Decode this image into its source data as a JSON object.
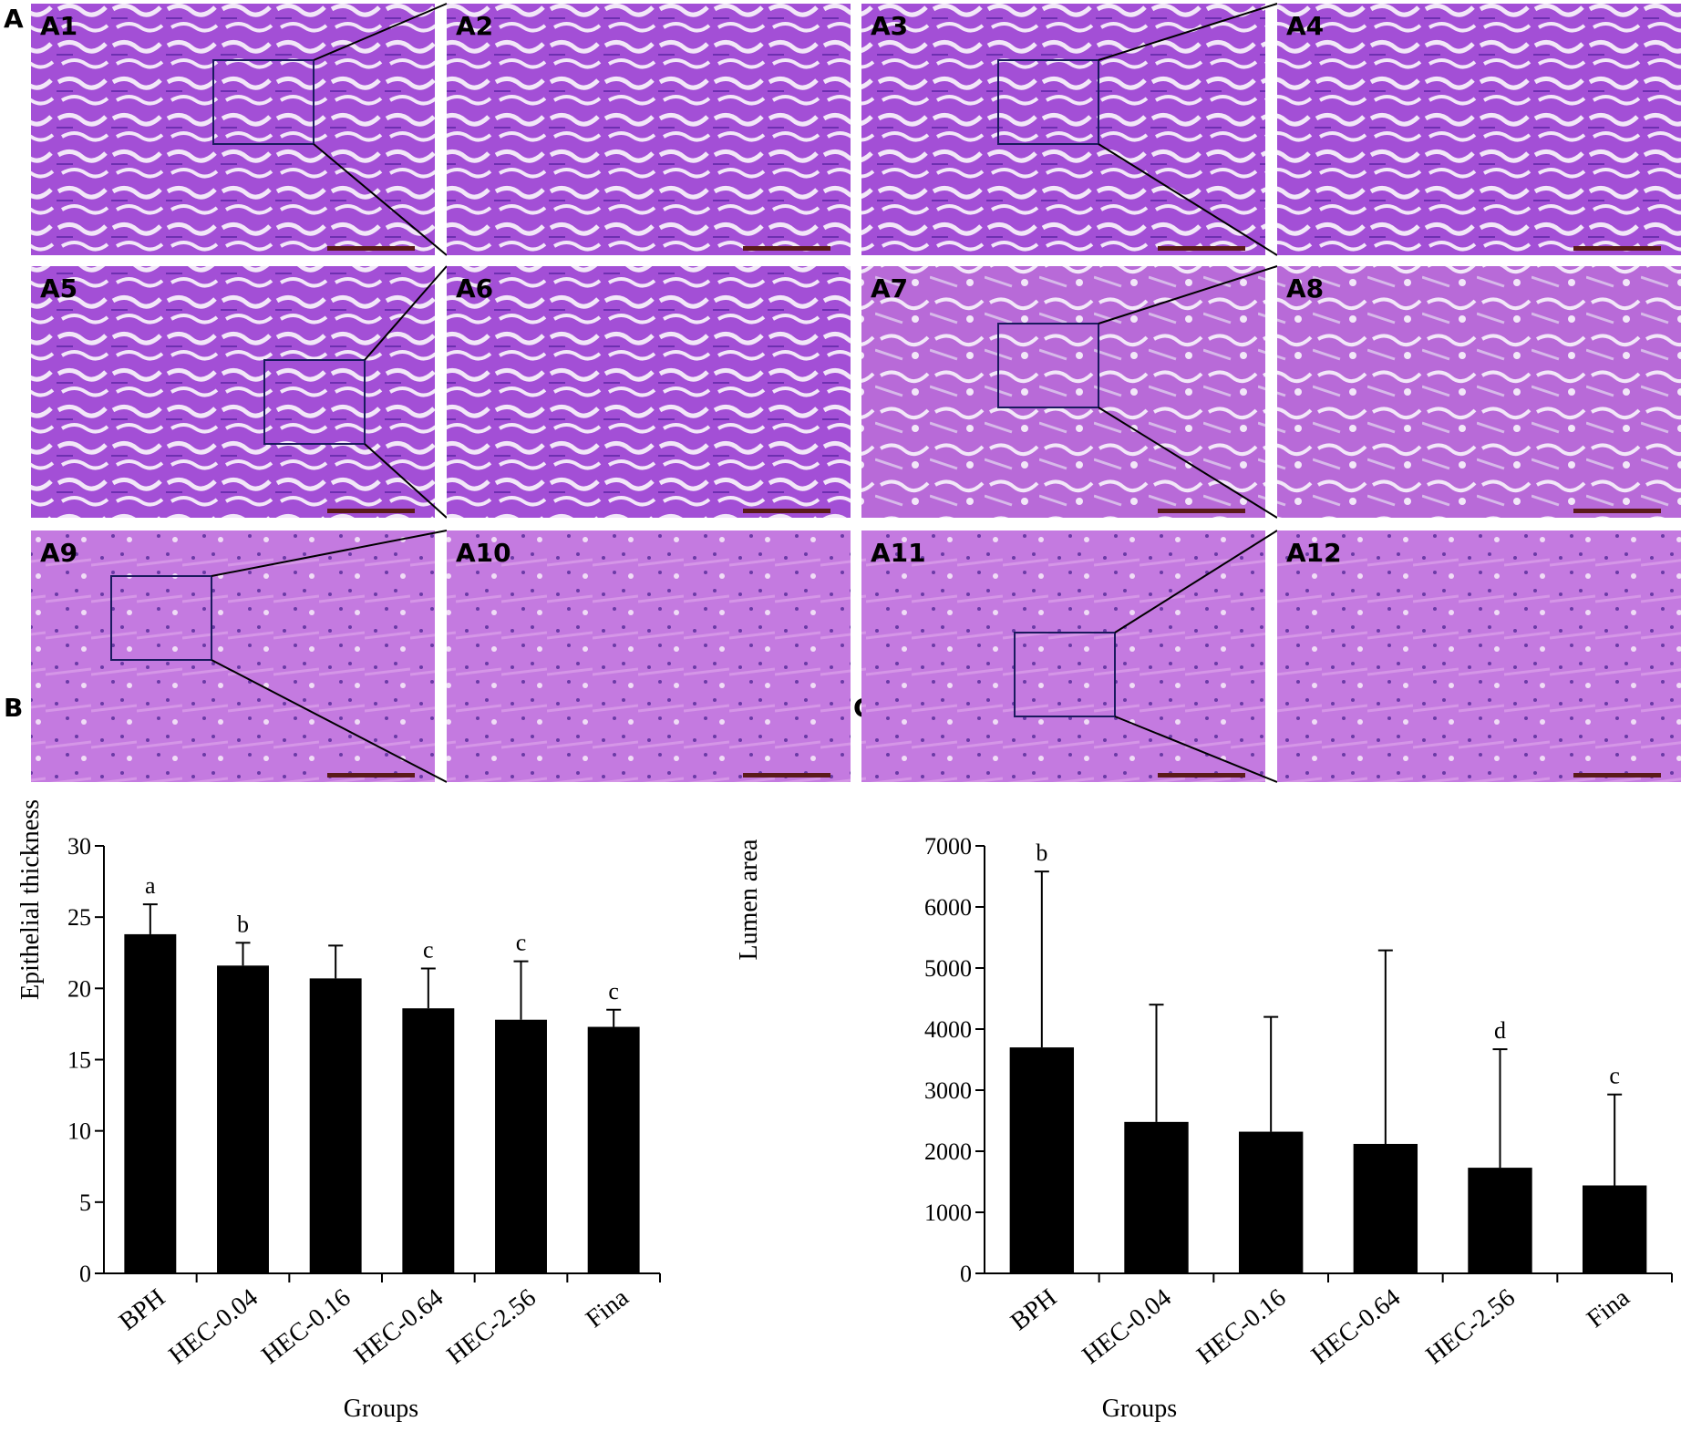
{
  "figure": {
    "panel_a_letter": "A",
    "panel_b_letter": "B",
    "panel_c_letter": "C",
    "micrographs": [
      {
        "label": "A1",
        "kind": "overview",
        "tone": "dense-pink-purple",
        "boxed": true
      },
      {
        "label": "A2",
        "kind": "zoom",
        "tone": "dense-pink-purple"
      },
      {
        "label": "A3",
        "kind": "overview",
        "tone": "dense-pink-purple",
        "boxed": true
      },
      {
        "label": "A4",
        "kind": "zoom",
        "tone": "dense-pink-purple"
      },
      {
        "label": "A5",
        "kind": "overview",
        "tone": "dense-pink-purple",
        "boxed": true
      },
      {
        "label": "A6",
        "kind": "zoom",
        "tone": "dense-pink-purple"
      },
      {
        "label": "A7",
        "kind": "overview",
        "tone": "stromal-pink",
        "boxed": true
      },
      {
        "label": "A8",
        "kind": "zoom",
        "tone": "stromal-pink"
      },
      {
        "label": "A9",
        "kind": "overview",
        "tone": "light-pink",
        "boxed": true
      },
      {
        "label": "A10",
        "kind": "zoom",
        "tone": "light-pink"
      },
      {
        "label": "A11",
        "kind": "overview",
        "tone": "light-pink",
        "boxed": true
      },
      {
        "label": "A12",
        "kind": "zoom",
        "tone": "light-pink"
      }
    ],
    "colors": {
      "dense-pink-purple": "#a34fd6",
      "stromal-pink": "#b86ad8",
      "light-pink": "#c47ae0",
      "lumen": "#f2e7f8",
      "box_stroke": "#1a1a5e",
      "scalebar": "#5a1a1a",
      "bar_fill": "#000000"
    }
  },
  "chart_data": [
    {
      "panel": "B",
      "type": "bar",
      "xlabel": "Groups",
      "ylabel": "Epithelial thickness",
      "ylim": [
        0,
        30
      ],
      "yticks": [
        0,
        5,
        10,
        15,
        20,
        25,
        30
      ],
      "categories": [
        "BPH",
        "HEC-0.04",
        "HEC-0.16",
        "HEC-0.64",
        "HEC-2.56",
        "Fina"
      ],
      "values": [
        23.8,
        21.6,
        20.7,
        18.6,
        17.8,
        17.3
      ],
      "errors": [
        2.1,
        1.6,
        2.3,
        2.8,
        4.1,
        1.2
      ],
      "annotations": [
        "a",
        "b",
        "",
        "c",
        "c",
        "c"
      ]
    },
    {
      "panel": "C",
      "type": "bar",
      "xlabel": "Groups",
      "ylabel": "Lumen area",
      "ylim": [
        0,
        7000
      ],
      "yticks": [
        0,
        1000,
        2000,
        3000,
        4000,
        5000,
        6000,
        7000
      ],
      "categories": [
        "BPH",
        "HEC-0.04",
        "HEC-0.16",
        "HEC-0.64",
        "HEC-2.56",
        "Fina"
      ],
      "values": [
        3700,
        2480,
        2320,
        2120,
        1730,
        1440
      ],
      "errors": [
        2880,
        1920,
        1880,
        3170,
        1940,
        1490
      ],
      "annotations": [
        "b",
        "",
        "",
        "",
        "d",
        "c"
      ]
    }
  ]
}
